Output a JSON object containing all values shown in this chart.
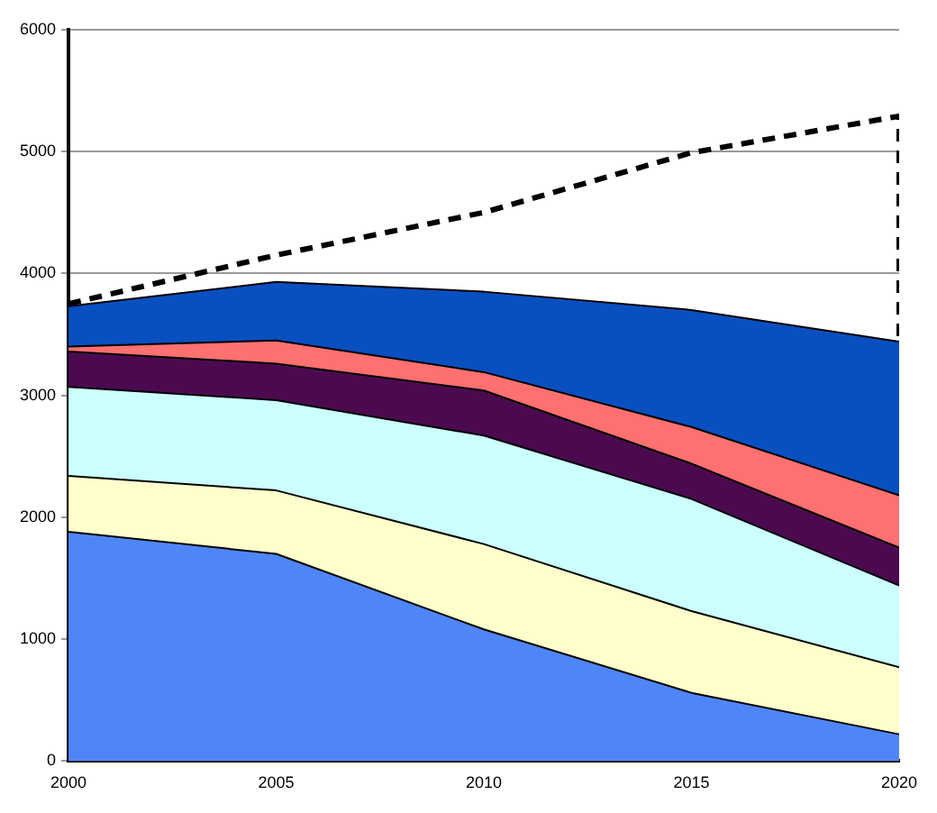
{
  "chart_data": {
    "type": "area",
    "stacked": true,
    "x": [
      2000,
      2005,
      2010,
      2015,
      2020
    ],
    "series": [
      {
        "color": "#4f86f7",
        "values": [
          1880,
          1700,
          1080,
          560,
          220
        ]
      },
      {
        "color": "#ffffcc",
        "values": [
          460,
          520,
          700,
          670,
          550
        ]
      },
      {
        "color": "#ccffff",
        "values": [
          730,
          740,
          890,
          920,
          670
        ]
      },
      {
        "color": "#4b0a50",
        "values": [
          290,
          300,
          370,
          290,
          310
        ]
      },
      {
        "color": "#ff7070",
        "values": [
          40,
          190,
          150,
          300,
          430
        ]
      },
      {
        "color": "#0a4fc0",
        "values": [
          330,
          480,
          660,
          960,
          1260
        ]
      },
      {
        "type": "line",
        "color": "#000000",
        "line_style": "dashed",
        "x": [
          2000,
          2005,
          2010,
          2015,
          2020,
          2020
        ],
        "values": [
          3750,
          4150,
          4500,
          4990,
          5290,
          3440
        ]
      }
    ],
    "xlim": [
      2000,
      2020
    ],
    "xticks": [
      2000,
      2005,
      2010,
      2015,
      2020
    ],
    "ylim": [
      0,
      6000
    ],
    "yticks": [
      0,
      1000,
      2000,
      3000,
      4000,
      5000,
      6000
    ],
    "grid": "y",
    "legend": false,
    "marker": "none"
  }
}
